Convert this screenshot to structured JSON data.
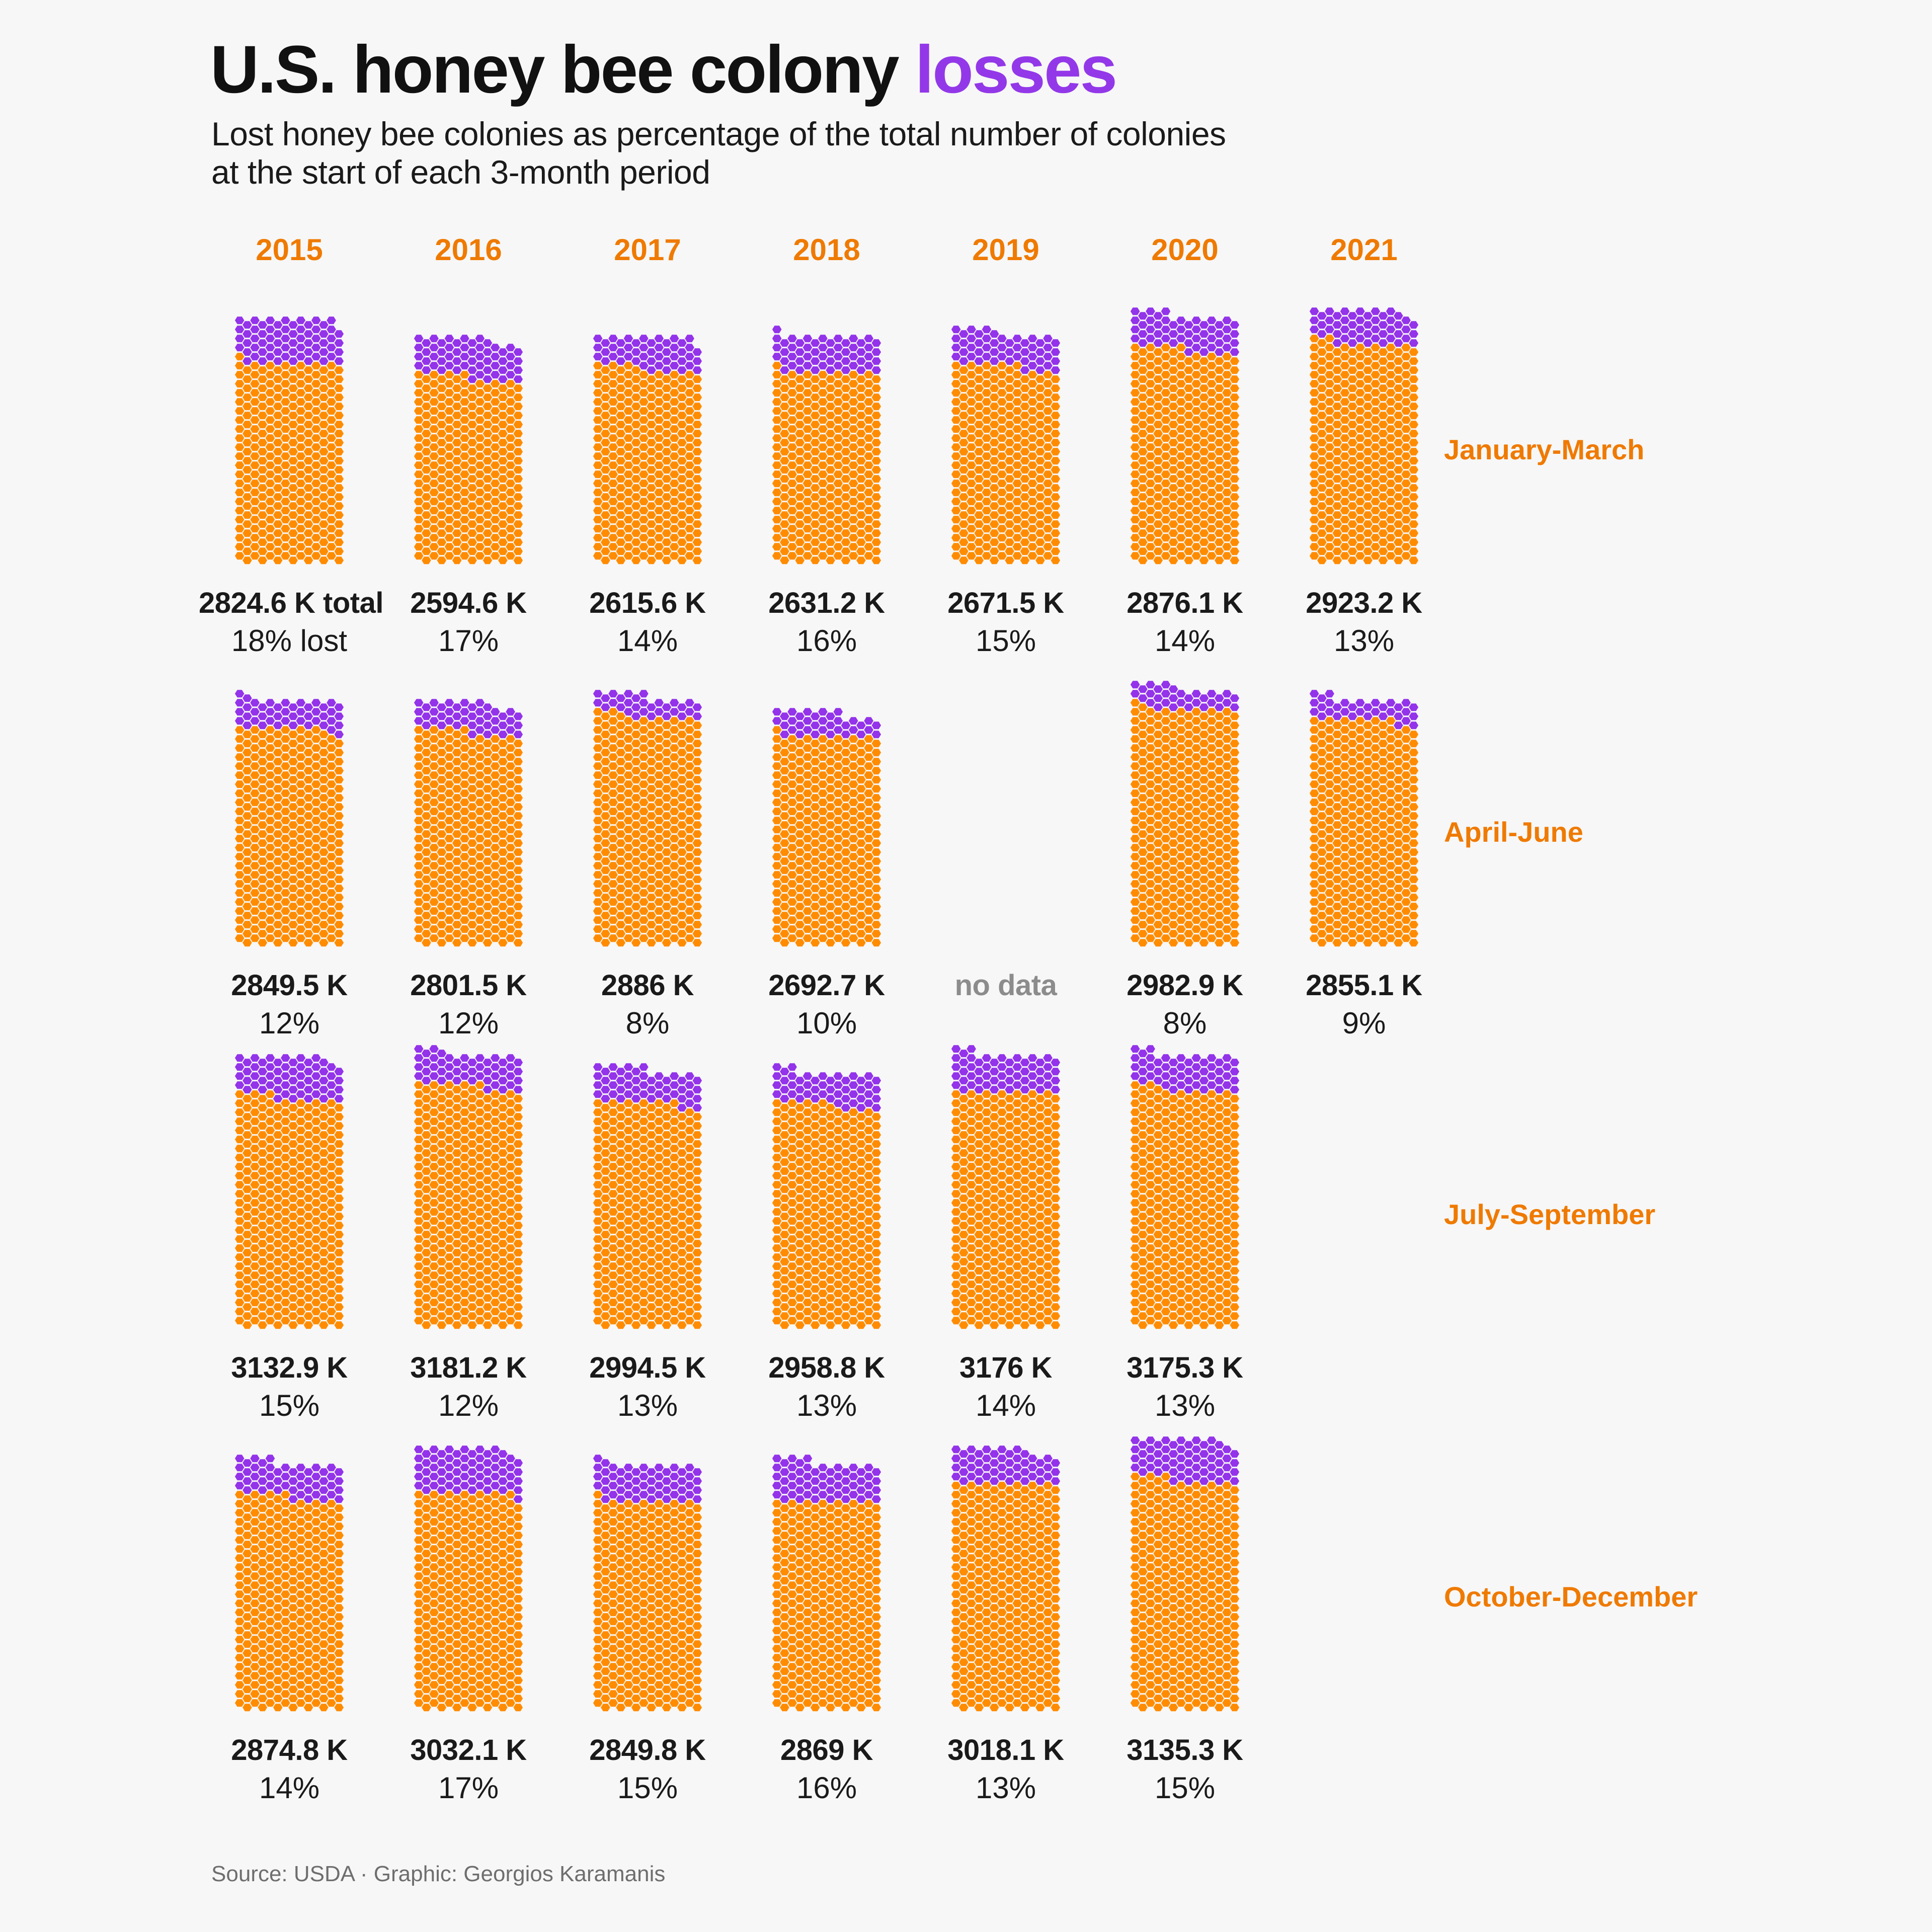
{
  "header": {
    "title_main": "U.S. honey bee colony ",
    "title_accent": "losses",
    "subtitle_line1": "Lost honey bee colonies as percentage of the total number of colonies",
    "subtitle_line2": "at the start of each 3-month period"
  },
  "footer": {
    "source": "Source: USDA · Graphic: Georgios Karamanis"
  },
  "colors": {
    "lost": "#9333ea",
    "remaining": "#ff8c00",
    "label_orange": "#ef7a00",
    "title_accent": "#9338e8"
  },
  "chart_data": {
    "type": "waffle-hex",
    "title": "U.S. honey bee colony losses",
    "subtitle": "Lost honey bee colonies as percentage of the total number of colonies at the start of each 3-month period",
    "unit_per_hex_k": 7.5,
    "years": [
      "2015",
      "2016",
      "2017",
      "2018",
      "2019",
      "2020",
      "2021"
    ],
    "periods": [
      {
        "name": "January-March",
        "cells": [
          {
            "year": "2015",
            "total_label": "2824.6 K total",
            "total": 2824.6,
            "pct_label": "18% lost",
            "pct": 18
          },
          {
            "year": "2016",
            "total_label": "2594.6 K",
            "total": 2594.6,
            "pct_label": "17%",
            "pct": 17
          },
          {
            "year": "2017",
            "total_label": "2615.6 K",
            "total": 2615.6,
            "pct_label": "14%",
            "pct": 14
          },
          {
            "year": "2018",
            "total_label": "2631.2 K",
            "total": 2631.2,
            "pct_label": "16%",
            "pct": 16
          },
          {
            "year": "2019",
            "total_label": "2671.5 K",
            "total": 2671.5,
            "pct_label": "15%",
            "pct": 15
          },
          {
            "year": "2020",
            "total_label": "2876.1 K",
            "total": 2876.1,
            "pct_label": "14%",
            "pct": 14
          },
          {
            "year": "2021",
            "total_label": "2923.2 K",
            "total": 2923.2,
            "pct_label": "13%",
            "pct": 13
          }
        ]
      },
      {
        "name": "April-June",
        "cells": [
          {
            "year": "2015",
            "total_label": "2849.5 K",
            "total": 2849.5,
            "pct_label": "12%",
            "pct": 12
          },
          {
            "year": "2016",
            "total_label": "2801.5 K",
            "total": 2801.5,
            "pct_label": "12%",
            "pct": 12
          },
          {
            "year": "2017",
            "total_label": "2886 K",
            "total": 2886,
            "pct_label": "8%",
            "pct": 8
          },
          {
            "year": "2018",
            "total_label": "2692.7 K",
            "total": 2692.7,
            "pct_label": "10%",
            "pct": 10
          },
          {
            "year": "2019",
            "total_label": "no data",
            "total": null,
            "pct_label": "",
            "pct": null
          },
          {
            "year": "2020",
            "total_label": "2982.9 K",
            "total": 2982.9,
            "pct_label": "8%",
            "pct": 8
          },
          {
            "year": "2021",
            "total_label": "2855.1 K",
            "total": 2855.1,
            "pct_label": "9%",
            "pct": 9
          }
        ]
      },
      {
        "name": "July-September",
        "cells": [
          {
            "year": "2015",
            "total_label": "3132.9 K",
            "total": 3132.9,
            "pct_label": "15%",
            "pct": 15
          },
          {
            "year": "2016",
            "total_label": "3181.2 K",
            "total": 3181.2,
            "pct_label": "12%",
            "pct": 12
          },
          {
            "year": "2017",
            "total_label": "2994.5 K",
            "total": 2994.5,
            "pct_label": "13%",
            "pct": 13
          },
          {
            "year": "2018",
            "total_label": "2958.8 K",
            "total": 2958.8,
            "pct_label": "13%",
            "pct": 13
          },
          {
            "year": "2019",
            "total_label": "3176 K",
            "total": 3176,
            "pct_label": "14%",
            "pct": 14
          },
          {
            "year": "2020",
            "total_label": "3175.3 K",
            "total": 3175.3,
            "pct_label": "13%",
            "pct": 13
          }
        ]
      },
      {
        "name": "October-December",
        "cells": [
          {
            "year": "2015",
            "total_label": "2874.8 K",
            "total": 2874.8,
            "pct_label": "14%",
            "pct": 14
          },
          {
            "year": "2016",
            "total_label": "3032.1 K",
            "total": 3032.1,
            "pct_label": "17%",
            "pct": 17
          },
          {
            "year": "2017",
            "total_label": "2849.8 K",
            "total": 2849.8,
            "pct_label": "15%",
            "pct": 15
          },
          {
            "year": "2018",
            "total_label": "2869 K",
            "total": 2869,
            "pct_label": "16%",
            "pct": 16
          },
          {
            "year": "2019",
            "total_label": "3018.1 K",
            "total": 3018.1,
            "pct_label": "13%",
            "pct": 13
          },
          {
            "year": "2020",
            "total_label": "3135.3 K",
            "total": 3135.3,
            "pct_label": "15%",
            "pct": 15
          }
        ]
      }
    ]
  }
}
